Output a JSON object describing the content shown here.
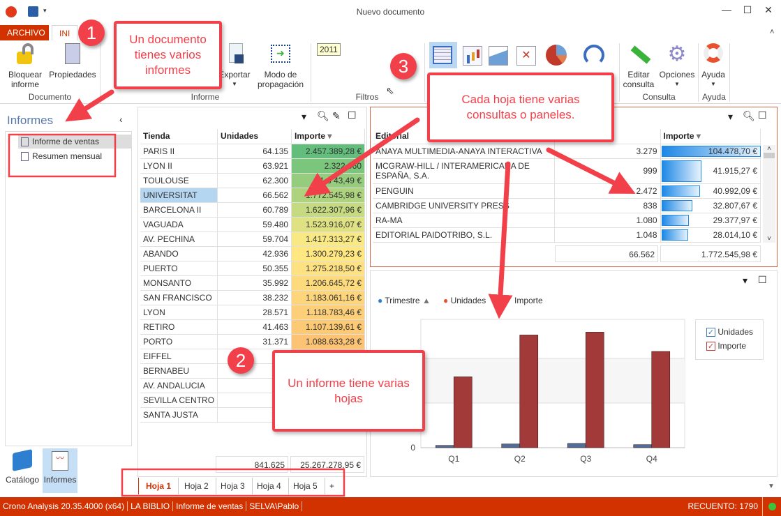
{
  "window": {
    "title": "Nuevo documento",
    "controls": [
      "minimize",
      "maximize",
      "close"
    ]
  },
  "ribbon": {
    "tabs": [
      {
        "label": "ARCHIVO"
      },
      {
        "label": "INI"
      }
    ],
    "buttons": {
      "bloquear": "Bloquear\ninforme",
      "propiedades": "Propiedades",
      "exportar": "Exportar",
      "modo": "Modo de\npropagación",
      "editar": "Editar\nconsulta",
      "opciones": "Opciones",
      "ayuda": "Ayuda"
    },
    "filter_value": "2011",
    "groups": {
      "documento": "Documento",
      "informe": "Informe",
      "filtros": "Filtros",
      "consulta": "Consulta",
      "ayuda": "Ayuda"
    }
  },
  "sidebar": {
    "title": "Informes",
    "items": [
      {
        "label": "Informe de ventas",
        "selected": true
      },
      {
        "label": "Resumen mensual"
      }
    ],
    "bottom": [
      {
        "label": "Catálogo"
      },
      {
        "label": "Informes",
        "selected": true
      }
    ]
  },
  "tiendas": {
    "headers": [
      "Tienda",
      "Unidades",
      "Importe"
    ],
    "rows": [
      [
        "PARIS II",
        "64.135",
        "2.457.389,28 €"
      ],
      [
        "LYON II",
        "63.921",
        "2.322.960"
      ],
      [
        "TOULOUSE",
        "62.300",
        "1.8 43,49 €"
      ],
      [
        "UNIVERSITAT",
        "66.562",
        "1.772.545,98 €"
      ],
      [
        "BARCELONA II",
        "60.789",
        "1.622.307,96 €"
      ],
      [
        "VAGUADA",
        "59.480",
        "1.523.916,07 €"
      ],
      [
        "AV. PECHINA",
        "59.704",
        "1.417.313,27 €"
      ],
      [
        "ABANDO",
        "42.936",
        "1.300.279,23 €"
      ],
      [
        "PUERTO",
        "50.355",
        "1.275.218,50 €"
      ],
      [
        "MONSANTO",
        "35.992",
        "1.206.645,72 €"
      ],
      [
        "SAN FRANCISCO",
        "38.232",
        "1.183.061,16 €"
      ],
      [
        "LYON",
        "28.571",
        "1.118.783,46 €"
      ],
      [
        "RETIRO",
        "41.463",
        "1.107.139,61 €"
      ],
      [
        "PORTO",
        "31.371",
        "1.088.633,28 €"
      ],
      [
        "EIFFEL",
        "28.",
        ""
      ],
      [
        "BERNABEU",
        "32.",
        ""
      ],
      [
        "AV. ANDALUCIA",
        "30.",
        ""
      ],
      [
        "SEVILLA CENTRO",
        "31.",
        ""
      ],
      [
        "SANTA JUSTA",
        "13.",
        ""
      ]
    ],
    "totals": [
      "841.625",
      "25.267.278,95 €"
    ],
    "selected_row": 3
  },
  "editoriales": {
    "headers": [
      "Editorial",
      "Unidades",
      "Importe"
    ],
    "rows": [
      {
        "name": "ANAYA MULTIMEDIA-ANAYA INTERACTIVA",
        "units": "3.279",
        "importe": "104.478,70 €",
        "value": 104478.7
      },
      {
        "name": "MCGRAW-HILL / INTERAMERICANA DE ESPAÑA, S.A.",
        "units": "999",
        "importe": "41.915,27 €",
        "value": 41915.27
      },
      {
        "name": "PENGUIN",
        "units": "2.472",
        "importe": "40.992,09 €",
        "value": 40992.09
      },
      {
        "name": "CAMBRIDGE UNIVERSITY PRESS",
        "units": "838",
        "importe": "32.807,67 €",
        "value": 32807.67
      },
      {
        "name": "RA-MA",
        "units": "1.080",
        "importe": "29.377,97 €",
        "value": 29377.97
      },
      {
        "name": "EDITORIAL PAIDOTRIBO, S.L.",
        "units": "1.048",
        "importe": "28.014,10 €",
        "value": 28014.1
      }
    ],
    "totals": [
      "66.562",
      "1.772.545,98 €"
    ]
  },
  "chart_data": {
    "type": "bar",
    "fields": [
      "Trimestre",
      "Unidades",
      "Importe"
    ],
    "categories": [
      "Q1",
      "Q2",
      "Q3",
      "Q4"
    ],
    "series": [
      {
        "name": "Unidades",
        "values": [
          145000,
          235000,
          270000,
          190000
        ],
        "color": "#4f6e9a"
      },
      {
        "name": "Importe",
        "values": [
          4530000,
          7200000,
          7380000,
          6150000
        ],
        "color": "#a33a3a"
      }
    ],
    "y_tick_labels": [
      "0"
    ],
    "ylim": [
      0,
      8200000
    ],
    "legend": "right",
    "grid": true
  },
  "sheets": {
    "tabs": [
      "Hoja 1",
      "Hoja 2",
      "Hoja 3",
      "Hoja 4",
      "Hoja 5"
    ],
    "add": "+",
    "active": 0
  },
  "status": {
    "items": [
      "Crono Analysis 20.35.4000 (x64)",
      "LA BIBLIO",
      "Informe de ventas",
      "SELVA\\Pablo"
    ],
    "count": "RECUENTO: 1790",
    "indicator_color": "#3cc43c"
  },
  "callouts": {
    "one": {
      "n": "1",
      "text": "Un documento tienes varios informes"
    },
    "two": {
      "n": "2",
      "text": "Un informe tiene varias hojas"
    },
    "three": {
      "n": "3",
      "text": "Cada hoja tiene varias consultas o paneles."
    }
  },
  "colors": {
    "accent": "#d13200",
    "callout": "#f2404a"
  }
}
